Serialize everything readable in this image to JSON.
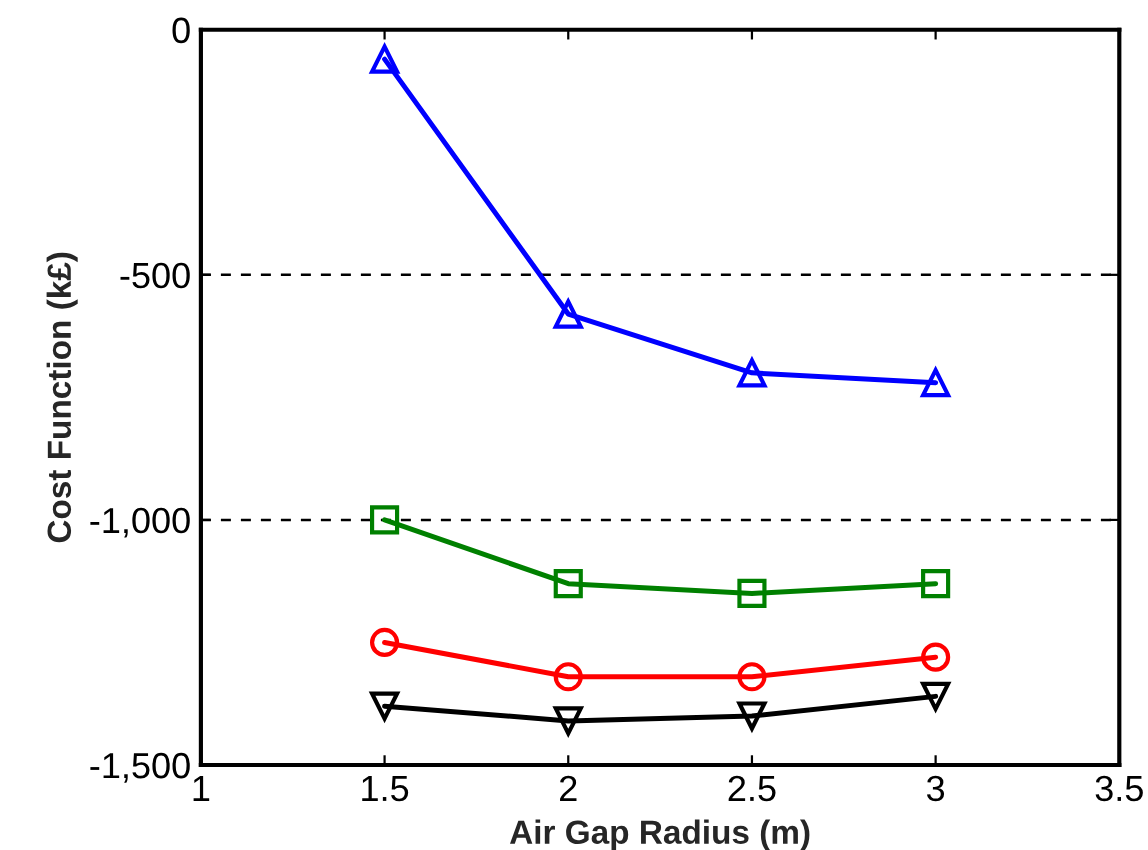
{
  "chart_data": {
    "type": "line",
    "xlabel": "Air Gap Radius (m)",
    "ylabel": "Cost Function (k£)",
    "x": [
      1.5,
      2,
      2.5,
      3
    ],
    "series": [
      {
        "color": "#0000ff",
        "marker": "triangle",
        "values": [
          -60,
          -580,
          -700,
          -720
        ]
      },
      {
        "color": "#008000",
        "marker": "square",
        "values": [
          -1000,
          -1130,
          -1150,
          -1130
        ]
      },
      {
        "color": "#ff0000",
        "marker": "circle",
        "values": [
          -1250,
          -1320,
          -1320,
          -1280
        ]
      },
      {
        "color": "#000000",
        "marker": "triangle_down",
        "values": [
          -1380,
          -1410,
          -1400,
          -1360
        ]
      }
    ],
    "xlim": [
      1,
      3.5
    ],
    "xticks": [
      1,
      1.5,
      2,
      2.5,
      3,
      3.5
    ],
    "ylim": [
      -1500,
      0
    ],
    "yticks": [
      {
        "value": -1500,
        "label": "-1,500"
      },
      {
        "value": -1000,
        "label": "-1,000"
      },
      {
        "value": -500,
        "label": "-500"
      },
      {
        "value": 0,
        "label": "0"
      }
    ],
    "grid": "y",
    "legend": false,
    "line_style": "solid"
  }
}
